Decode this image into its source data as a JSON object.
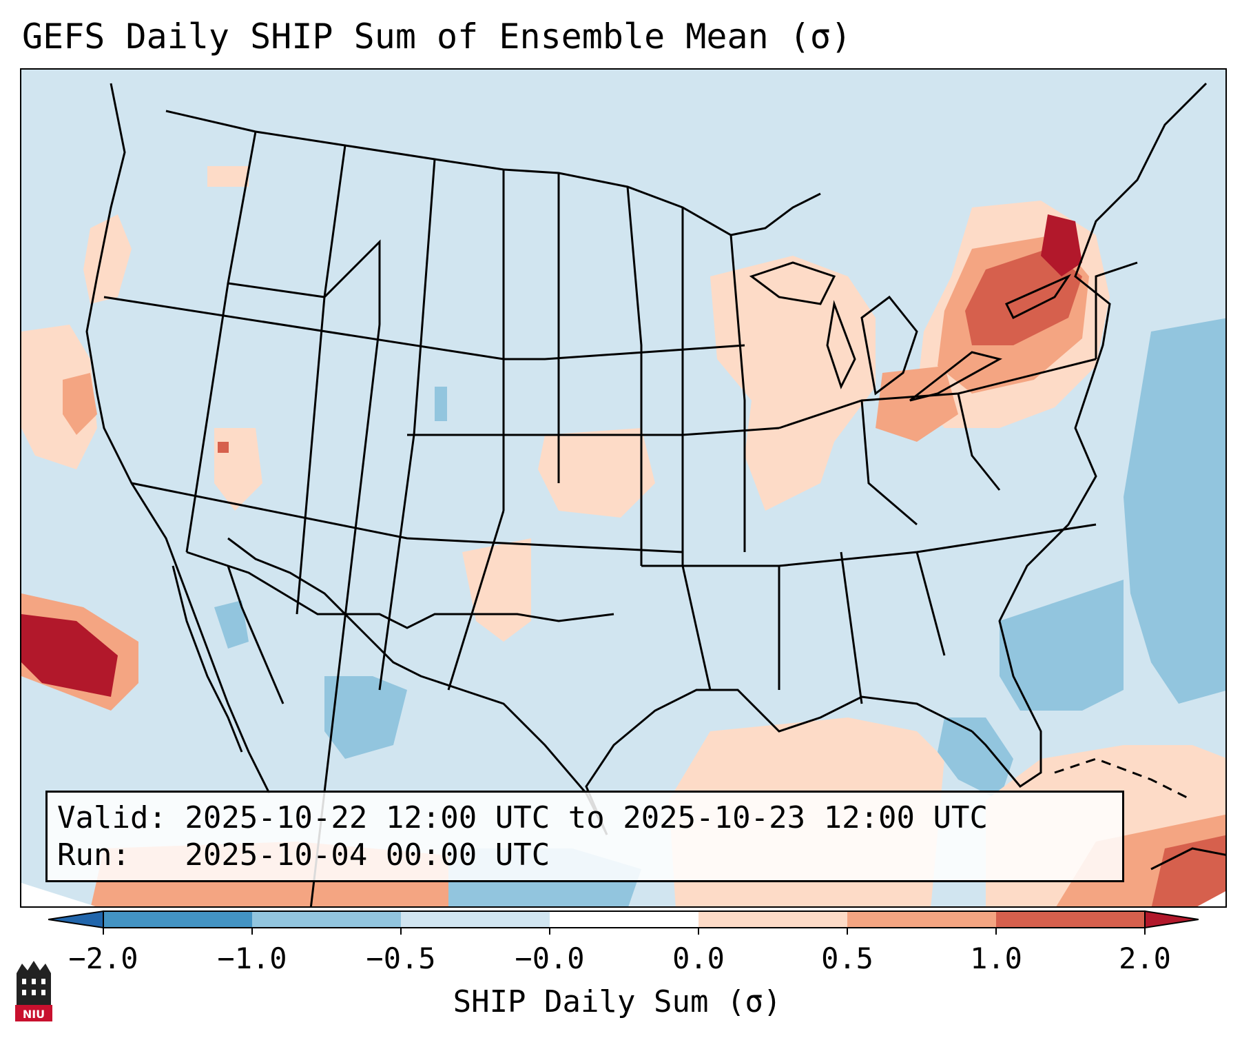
{
  "title": "GEFS Daily SHIP Sum of Ensemble Mean (σ)",
  "info": {
    "valid": "Valid: 2025-10-22 12:00 UTC to 2025-10-23 12:00 UTC",
    "run": "Run:   2025-10-04 00:00 UTC"
  },
  "colorbar": {
    "label": "SHIP Daily Sum (σ)",
    "ticks": [
      "−2.0",
      "−1.0",
      "−0.5",
      "−0.0",
      "0.0",
      "0.5",
      "1.0",
      "2.0"
    ],
    "colors": [
      "#4393c3",
      "#92c5de",
      "#d1e5f0",
      "#d1e5f0",
      "#fddbc7",
      "#f4a582",
      "#d6604d"
    ],
    "extend_low": "#2166ac",
    "extend_high": "#b2182b"
  },
  "logo": {
    "text": "NIU",
    "color": "#c8102e"
  },
  "map": {
    "background": "#d1e5f0",
    "regions": [
      "Pacific Northwest",
      "California coast",
      "Eastern Pacific (west of Baja)",
      "Great Lakes",
      "New York / Pennsylvania",
      "Ohio Valley",
      "Central Plains",
      "Gulf of Mexico",
      "Caribbean",
      "Western Atlantic"
    ]
  }
}
